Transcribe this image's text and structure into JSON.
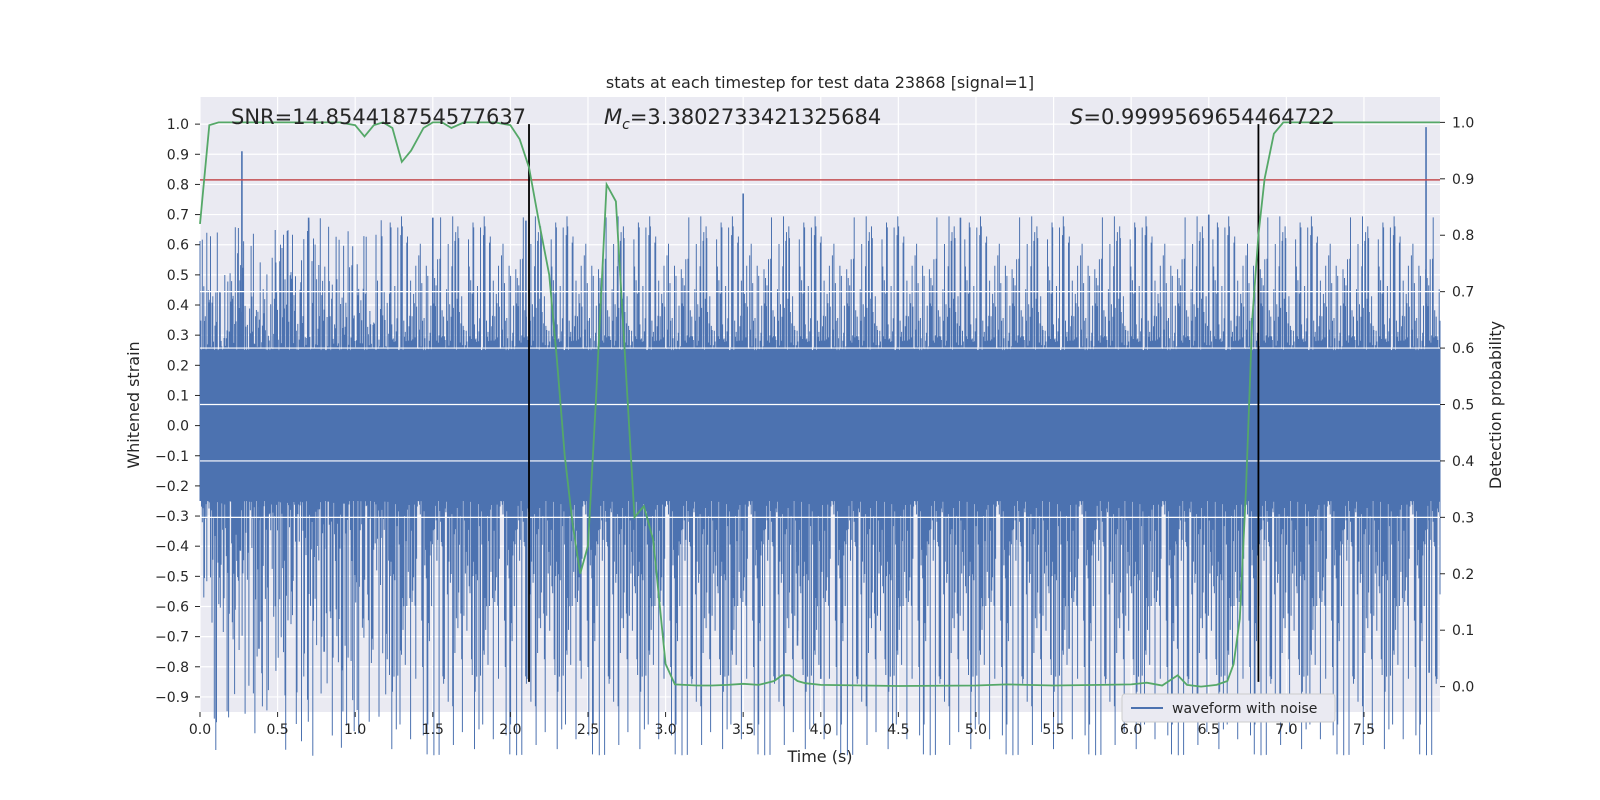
{
  "chart_data": {
    "type": "line",
    "title": "stats at each timestep for test data 23868 [signal=1]",
    "xlabel": "Time (s)",
    "ylabel": "Whitened strain",
    "y2label": "Detection probability",
    "xlim": [
      0.0,
      7.99
    ],
    "ylim": [
      -0.95,
      1.09
    ],
    "y2lim": [
      -0.045,
      1.045
    ],
    "x_ticks": [
      0.0,
      0.5,
      1.0,
      1.5,
      2.0,
      2.5,
      3.0,
      3.5,
      4.0,
      4.5,
      5.0,
      5.5,
      6.0,
      6.5,
      7.0,
      7.5
    ],
    "x_tick_labels": [
      "0.0",
      "0.5",
      "1.0",
      "1.5",
      "2.0",
      "2.5",
      "3.0",
      "3.5",
      "4.0",
      "4.5",
      "5.0",
      "5.5",
      "6.0",
      "6.5",
      "7.0",
      "7.5"
    ],
    "y_ticks": [
      1.0,
      0.9,
      0.8,
      0.7,
      0.6,
      0.5,
      0.4,
      0.3,
      0.2,
      0.1,
      0.0,
      -0.1,
      -0.2,
      -0.3,
      -0.4,
      -0.5,
      -0.6,
      -0.7,
      -0.8,
      -0.9
    ],
    "y_tick_labels": [
      "1.0",
      "0.9",
      "0.8",
      "0.7",
      "0.6",
      "0.5",
      "0.4",
      "0.3",
      "0.2",
      "0.1",
      "0.0",
      "−0.1",
      "−0.2",
      "−0.3",
      "−0.4",
      "−0.5",
      "−0.6",
      "−0.7",
      "−0.8",
      "−0.9"
    ],
    "y2_ticks": [
      1.0,
      0.9,
      0.8,
      0.7,
      0.6,
      0.5,
      0.4,
      0.3,
      0.2,
      0.1,
      0.0
    ],
    "y2_tick_labels": [
      "1.0",
      "0.9",
      "0.8",
      "0.7",
      "0.6",
      "0.5",
      "0.4",
      "0.3",
      "0.2",
      "0.1",
      "0.0"
    ],
    "grid": true,
    "legend": {
      "placement": "lower-right",
      "entries": [
        "waveform with noise"
      ]
    },
    "annotations": {
      "snr": "SNR=14.854418754577637",
      "mc_symbol": "M",
      "mc_sub": "c",
      "mc_value": "=3.3802733421325684",
      "s_symbol": "S",
      "s_value": "=0.9999569654464722"
    },
    "threshold_y": 0.815,
    "vertical_lines_x": [
      2.12,
      6.82
    ],
    "strain_noise": {
      "series": "waveform with noise",
      "core_amplitude": 0.25,
      "envelope_upper": 0.7,
      "envelope_lower": -0.6
    },
    "strain_peaks": [
      {
        "x": 0.27,
        "y": 0.91
      },
      {
        "x": 0.7,
        "y": 0.69
      },
      {
        "x": 1.5,
        "y": 0.69
      },
      {
        "x": 2.1,
        "y": 0.68
      },
      {
        "x": 3.5,
        "y": 0.77
      },
      {
        "x": 4.9,
        "y": 0.69
      },
      {
        "x": 6.5,
        "y": 0.7
      },
      {
        "x": 7.9,
        "y": 0.99
      },
      {
        "x": 7.92,
        "y": -0.82
      },
      {
        "x": 4.0,
        "y": -0.84
      },
      {
        "x": 2.45,
        "y": -0.78
      },
      {
        "x": 0.38,
        "y": -0.74
      },
      {
        "x": 0.8,
        "y": -0.75
      },
      {
        "x": 3.85,
        "y": -0.73
      },
      {
        "x": 5.6,
        "y": -0.74
      },
      {
        "x": 6.3,
        "y": -0.74
      }
    ],
    "probability_series": {
      "name": "Detection probability",
      "color": "#55a868",
      "x": [
        0.0,
        0.06,
        0.12,
        0.2,
        0.3,
        0.5,
        0.7,
        0.9,
        1.0,
        1.06,
        1.12,
        1.18,
        1.24,
        1.3,
        1.36,
        1.44,
        1.5,
        1.56,
        1.62,
        1.7,
        1.8,
        1.9,
        2.0,
        2.06,
        2.12,
        2.18,
        2.25,
        2.3,
        2.35,
        2.4,
        2.45,
        2.5,
        2.55,
        2.62,
        2.68,
        2.74,
        2.8,
        2.86,
        2.92,
        3.0,
        3.06,
        3.2,
        3.3,
        3.4,
        3.5,
        3.6,
        3.7,
        3.75,
        3.8,
        3.85,
        3.9,
        4.0,
        4.5,
        5.0,
        5.2,
        5.5,
        5.8,
        6.0,
        6.1,
        6.2,
        6.3,
        6.36,
        6.45,
        6.55,
        6.62,
        6.66,
        6.7,
        6.74,
        6.78,
        6.82,
        6.86,
        6.92,
        6.98,
        7.05,
        7.5,
        7.99
      ],
      "y": [
        0.82,
        0.995,
        1.0,
        1.0,
        1.0,
        1.0,
        1.0,
        1.0,
        0.995,
        0.975,
        0.995,
        1.0,
        0.99,
        0.93,
        0.95,
        0.99,
        1.0,
        1.0,
        0.99,
        1.0,
        1.0,
        1.0,
        0.995,
        0.97,
        0.92,
        0.83,
        0.73,
        0.58,
        0.41,
        0.29,
        0.2,
        0.25,
        0.5,
        0.89,
        0.86,
        0.58,
        0.3,
        0.32,
        0.26,
        0.04,
        0.004,
        0.002,
        0.002,
        0.003,
        0.005,
        0.003,
        0.01,
        0.02,
        0.02,
        0.01,
        0.006,
        0.003,
        0.001,
        0.002,
        0.004,
        0.002,
        0.003,
        0.004,
        0.007,
        0.002,
        0.02,
        0.003,
        0.0,
        0.003,
        0.01,
        0.04,
        0.12,
        0.35,
        0.65,
        0.8,
        0.9,
        0.98,
        1.0,
        1.0,
        1.0,
        1.0
      ]
    },
    "colors": {
      "plot_bg": "#eaeaf2",
      "grid": "#ffffff",
      "strain": "#4c72b0",
      "probability": "#55a868",
      "threshold": "#c44e52",
      "vline": "#000000"
    }
  }
}
